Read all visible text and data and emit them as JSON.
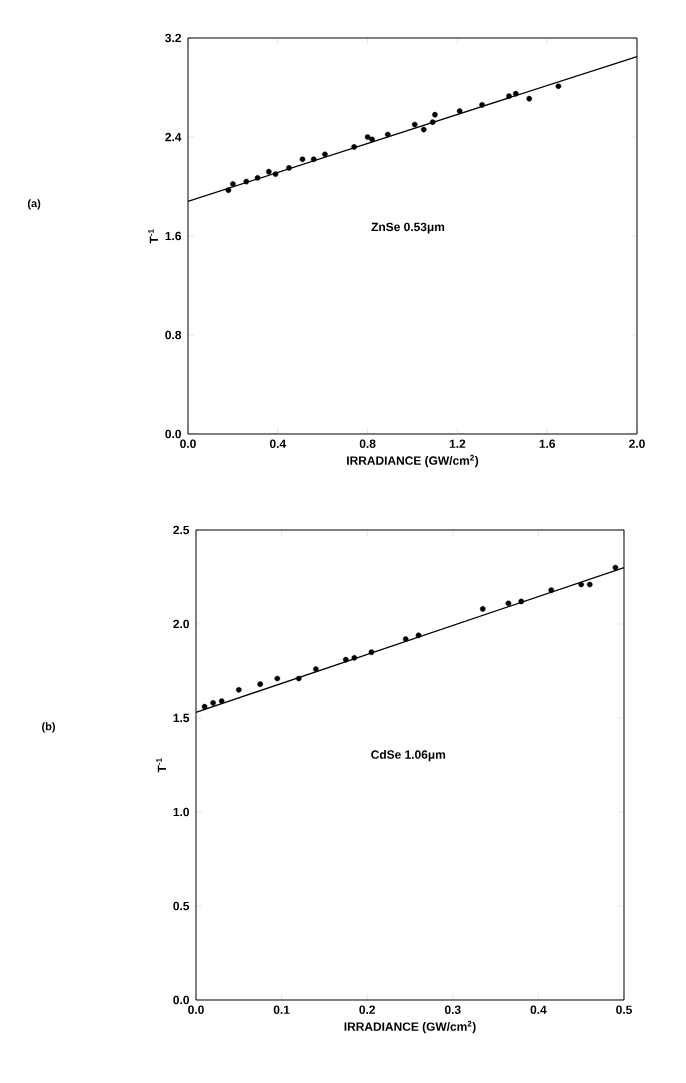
{
  "chart_data": [
    {
      "type": "scatter",
      "xlabel": "IRRADIANCE (GW/cm$^{2}$)",
      "ylabel": "T$^{-1}$",
      "annotations": [
        "(a)",
        "ZnSe 0.53μm"
      ],
      "grid": false,
      "xlim": [
        0,
        2.0
      ],
      "ylim": [
        0,
        3.2
      ],
      "xticks": [
        {
          "value": 0,
          "label": "0.0"
        },
        {
          "value": 0.4,
          "label": "0.4"
        },
        {
          "value": 0.8,
          "label": "0.8"
        },
        {
          "value": 1.2,
          "label": "1.2"
        },
        {
          "value": 1.6,
          "label": "1.6"
        },
        {
          "value": 2.0,
          "label": "2.0"
        }
      ],
      "yticks": [
        {
          "value": 0,
          "label": "0.0"
        },
        {
          "value": 0.8,
          "label": "0.8"
        },
        {
          "value": 1.6,
          "label": "1.6"
        },
        {
          "value": 2.4,
          "label": "2.4"
        },
        {
          "value": 3.2,
          "label": "3.2"
        }
      ],
      "series": [
        {
          "marker": "circle",
          "color": "#000000",
          "x": [
            0.18,
            0.2,
            0.26,
            0.31,
            0.36,
            0.39,
            0.45,
            0.51,
            0.56,
            0.61,
            0.74,
            0.8,
            0.82,
            0.89,
            1.01,
            1.05,
            1.09,
            1.1,
            1.21,
            1.31,
            1.43,
            1.46,
            1.52,
            1.65
          ],
          "values": [
            1.97,
            2.02,
            2.04,
            2.07,
            2.12,
            2.1,
            2.15,
            2.22,
            2.22,
            2.26,
            2.32,
            2.4,
            2.38,
            2.42,
            2.5,
            2.46,
            2.52,
            2.58,
            2.61,
            2.66,
            2.73,
            2.75,
            2.71,
            2.81
          ]
        },
        {
          "type": "line",
          "marker": "none",
          "color": "#000000",
          "x": [
            0,
            2.0
          ],
          "values": [
            1.88,
            3.05
          ]
        }
      ]
    },
    {
      "type": "scatter",
      "xlabel": "IRRADIANCE (GW/cm$^{2}$)",
      "ylabel": "T$^{-1}$",
      "annotations": [
        "(b)",
        "CdSe 1.06μm"
      ],
      "grid": false,
      "xlim": [
        0,
        0.5
      ],
      "ylim": [
        0,
        2.5
      ],
      "xticks": [
        {
          "value": 0,
          "label": "0.0"
        },
        {
          "value": 0.1,
          "label": "0.1"
        },
        {
          "value": 0.2,
          "label": "0.2"
        },
        {
          "value": 0.3,
          "label": "0.3"
        },
        {
          "value": 0.4,
          "label": "0.4"
        },
        {
          "value": 0.5,
          "label": "0.5"
        }
      ],
      "yticks": [
        {
          "value": 0,
          "label": "0.0"
        },
        {
          "value": 0.5,
          "label": "0.5"
        },
        {
          "value": 1.0,
          "label": "1.0"
        },
        {
          "value": 1.5,
          "label": "1.5"
        },
        {
          "value": 2.0,
          "label": "2.0"
        },
        {
          "value": 2.5,
          "label": "2.5"
        }
      ],
      "series": [
        {
          "marker": "circle",
          "color": "#000000",
          "x": [
            0.01,
            0.02,
            0.03,
            0.05,
            0.075,
            0.095,
            0.12,
            0.14,
            0.175,
            0.185,
            0.205,
            0.245,
            0.26,
            0.335,
            0.365,
            0.38,
            0.415,
            0.45,
            0.46,
            0.49
          ],
          "values": [
            1.56,
            1.58,
            1.59,
            1.65,
            1.68,
            1.71,
            1.71,
            1.76,
            1.81,
            1.82,
            1.85,
            1.92,
            1.94,
            2.08,
            2.11,
            2.12,
            2.18,
            2.21,
            2.21,
            2.3
          ]
        },
        {
          "type": "line",
          "marker": "none",
          "color": "#000000",
          "x": [
            0,
            0.5
          ],
          "values": [
            1.53,
            2.3
          ]
        }
      ]
    }
  ]
}
